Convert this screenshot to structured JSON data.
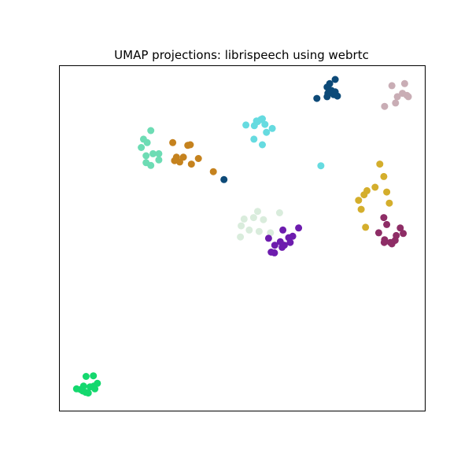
{
  "chart_data": {
    "type": "scatter",
    "title": "UMAP projections: librispeech using webrtc",
    "xlabel": "",
    "ylabel": "",
    "show_ticks": false,
    "grid": false,
    "legend": "none",
    "xlim": [
      0,
      100
    ],
    "ylim": [
      0,
      100
    ],
    "series": [
      {
        "color": "#0d4a78",
        "points": [
          [
            74.0,
            94.7
          ],
          [
            75.5,
            95.9
          ],
          [
            73.3,
            93.7
          ],
          [
            74.5,
            92.7
          ],
          [
            75.1,
            91.5
          ],
          [
            76.1,
            91.1
          ],
          [
            73.5,
            91.9
          ],
          [
            70.5,
            90.4
          ],
          [
            75.5,
            92.3
          ],
          [
            73.3,
            90.9
          ],
          [
            73.9,
            92.9
          ],
          [
            45.1,
            66.9
          ]
        ]
      },
      {
        "color": "#c9adb5",
        "points": [
          [
            94.5,
            94.7
          ],
          [
            91.0,
            94.1
          ],
          [
            92.5,
            90.9
          ],
          [
            93.9,
            91.9
          ],
          [
            95.1,
            91.3
          ],
          [
            95.5,
            90.9
          ],
          [
            89.0,
            88.1
          ],
          [
            92.0,
            89.1
          ]
        ]
      },
      {
        "color": "#66dbe0",
        "points": [
          [
            55.2,
            84.3
          ],
          [
            54.3,
            83.7
          ],
          [
            55.6,
            84.5
          ],
          [
            54.0,
            83.9
          ],
          [
            51.1,
            82.7
          ],
          [
            53.4,
            82.5
          ],
          [
            56.3,
            82.9
          ],
          [
            58.3,
            81.7
          ],
          [
            56.7,
            80.6
          ],
          [
            53.3,
            78.6
          ],
          [
            55.6,
            77.0
          ],
          [
            71.6,
            70.9
          ]
        ]
      },
      {
        "color": "#6ddcb4",
        "points": [
          [
            25.1,
            81.1
          ],
          [
            24.1,
            77.6
          ],
          [
            23.1,
            78.6
          ],
          [
            22.5,
            76.2
          ],
          [
            25.7,
            74.4
          ],
          [
            27.3,
            74.4
          ],
          [
            23.8,
            73.8
          ],
          [
            27.3,
            72.6
          ],
          [
            23.8,
            71.8
          ],
          [
            25.1,
            71.0
          ]
        ]
      },
      {
        "color": "#c5821e",
        "points": [
          [
            31.1,
            77.6
          ],
          [
            35.2,
            76.8
          ],
          [
            35.9,
            77.0
          ],
          [
            32.1,
            73.4
          ],
          [
            34.0,
            73.4
          ],
          [
            31.6,
            72.4
          ],
          [
            38.1,
            73.0
          ],
          [
            33.0,
            72.0
          ],
          [
            36.2,
            71.4
          ],
          [
            42.2,
            69.2
          ]
        ]
      },
      {
        "color": "#d4ae2c",
        "points": [
          [
            87.7,
            71.4
          ],
          [
            88.8,
            67.8
          ],
          [
            86.4,
            64.7
          ],
          [
            84.2,
            63.7
          ],
          [
            83.4,
            62.5
          ],
          [
            89.6,
            63.3
          ],
          [
            81.9,
            60.9
          ],
          [
            90.3,
            60.1
          ],
          [
            82.6,
            58.3
          ],
          [
            83.8,
            53.1
          ]
        ]
      },
      {
        "color": "#8e2d66",
        "points": [
          [
            88.8,
            55.9
          ],
          [
            89.6,
            53.9
          ],
          [
            87.4,
            51.5
          ],
          [
            93.3,
            52.9
          ],
          [
            94.1,
            51.3
          ],
          [
            92.2,
            50.7
          ],
          [
            89.0,
            49.5
          ],
          [
            88.9,
            48.7
          ],
          [
            91.0,
            48.3
          ],
          [
            91.9,
            49.3
          ],
          [
            90.6,
            48.7
          ]
        ]
      },
      {
        "color": "#d9ecdc",
        "points": [
          [
            54.3,
            57.7
          ],
          [
            60.3,
            57.3
          ],
          [
            53.2,
            55.9
          ],
          [
            50.6,
            55.5
          ],
          [
            55.9,
            55.3
          ],
          [
            49.8,
            53.5
          ],
          [
            52.0,
            52.3
          ],
          [
            54.7,
            51.9
          ],
          [
            49.6,
            50.3
          ],
          [
            57.8,
            51.5
          ]
        ]
      },
      {
        "color": "#6d1cae",
        "points": [
          [
            65.5,
            52.9
          ],
          [
            61.2,
            52.3
          ],
          [
            63.9,
            50.5
          ],
          [
            62.8,
            50.1
          ],
          [
            57.3,
            49.9
          ],
          [
            63.2,
            48.7
          ],
          [
            60.5,
            48.9
          ],
          [
            59.0,
            47.9
          ],
          [
            61.0,
            47.3
          ],
          [
            61.6,
            47.9
          ],
          [
            58.0,
            45.9
          ],
          [
            58.9,
            45.7
          ]
        ]
      },
      {
        "color": "#14d86e",
        "points": [
          [
            7.4,
            9.9
          ],
          [
            9.4,
            10.1
          ],
          [
            10.5,
            7.9
          ],
          [
            6.7,
            7.1
          ],
          [
            8.5,
            6.9
          ],
          [
            9.5,
            7.1
          ],
          [
            9.8,
            6.3
          ],
          [
            5.9,
            6.1
          ],
          [
            4.8,
            6.3
          ],
          [
            6.5,
            5.7
          ],
          [
            7.3,
            5.3
          ],
          [
            8.0,
            5.1
          ]
        ]
      }
    ]
  }
}
